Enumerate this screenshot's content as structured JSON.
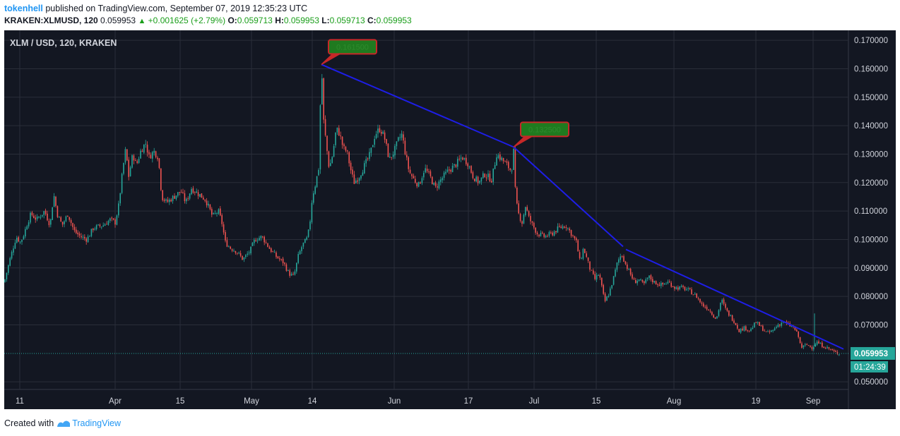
{
  "header": {
    "user": "tokenhell",
    "published_text": " published on TradingView.com, September 07, 2019 12:35:23 UTC",
    "symbol": "KRAKEN:XLMUSD, 120",
    "last": "0.059953",
    "change_arrow": "▲",
    "change": "+0.001625 (+2.79%)",
    "o_label": "O:",
    "o_value": "0.059713",
    "h_label": "H:",
    "h_value": "0.059953",
    "l_label": "L:",
    "l_value": "0.059713",
    "c_label": "C:",
    "c_value": "0.059953"
  },
  "footer": {
    "created_with": "Created with",
    "brand": "TradingView"
  },
  "colors": {
    "background": "#131722",
    "grid": "#2a2e39",
    "up": "#26a69a",
    "down": "#ef5350",
    "trendline": "#1e1ee6",
    "price_line": "#26a69a",
    "label_fill": "#1f7a1f",
    "label_border": "#c62828"
  },
  "chart_data": {
    "type": "candlestick",
    "title": "XLM / USD, 120, KRAKEN",
    "x_tick_labels": [
      "11",
      "Apr",
      "15",
      "May",
      "14",
      "Jun",
      "17",
      "Jul",
      "15",
      "Aug",
      "19",
      "Sep"
    ],
    "y_tick_labels": [
      "0.170000",
      "0.160000",
      "0.150000",
      "0.140000",
      "0.130000",
      "0.120000",
      "0.110000",
      "0.100000",
      "0.090000",
      "0.080000",
      "0.070000",
      "0.050000"
    ],
    "ylim": [
      0.0473,
      0.1735
    ],
    "grid": true,
    "last_price_label": "0.059953",
    "countdown_label": "01:24:39",
    "last_price": 0.059953,
    "price_path": [
      {
        "x": 0,
        "y": 0.085
      },
      {
        "x": 8,
        "y": 0.093
      },
      {
        "x": 17,
        "y": 0.101
      },
      {
        "x": 23,
        "y": 0.099
      },
      {
        "x": 28,
        "y": 0.102
      },
      {
        "x": 33,
        "y": 0.106
      },
      {
        "x": 38,
        "y": 0.109
      },
      {
        "x": 46,
        "y": 0.107
      },
      {
        "x": 57,
        "y": 0.11
      },
      {
        "x": 65,
        "y": 0.105
      },
      {
        "x": 70,
        "y": 0.116
      },
      {
        "x": 75,
        "y": 0.109
      },
      {
        "x": 82,
        "y": 0.105
      },
      {
        "x": 90,
        "y": 0.109
      },
      {
        "x": 99,
        "y": 0.103
      },
      {
        "x": 108,
        "y": 0.101
      },
      {
        "x": 117,
        "y": 0.1
      },
      {
        "x": 126,
        "y": 0.104
      },
      {
        "x": 140,
        "y": 0.105
      },
      {
        "x": 150,
        "y": 0.107
      },
      {
        "x": 157,
        "y": 0.106
      },
      {
        "x": 162,
        "y": 0.112
      },
      {
        "x": 168,
        "y": 0.125
      },
      {
        "x": 172,
        "y": 0.132
      },
      {
        "x": 176,
        "y": 0.122
      },
      {
        "x": 182,
        "y": 0.13
      },
      {
        "x": 187,
        "y": 0.126
      },
      {
        "x": 193,
        "y": 0.131
      },
      {
        "x": 200,
        "y": 0.134
      },
      {
        "x": 205,
        "y": 0.129
      },
      {
        "x": 212,
        "y": 0.131
      },
      {
        "x": 218,
        "y": 0.129
      },
      {
        "x": 223,
        "y": 0.115
      },
      {
        "x": 230,
        "y": 0.113
      },
      {
        "x": 240,
        "y": 0.115
      },
      {
        "x": 250,
        "y": 0.117
      },
      {
        "x": 257,
        "y": 0.113
      },
      {
        "x": 265,
        "y": 0.118
      },
      {
        "x": 275,
        "y": 0.116
      },
      {
        "x": 285,
        "y": 0.114
      },
      {
        "x": 295,
        "y": 0.108
      },
      {
        "x": 303,
        "y": 0.11
      },
      {
        "x": 308,
        "y": 0.106
      },
      {
        "x": 313,
        "y": 0.099
      },
      {
        "x": 320,
        "y": 0.097
      },
      {
        "x": 328,
        "y": 0.096
      },
      {
        "x": 338,
        "y": 0.093
      },
      {
        "x": 348,
        "y": 0.096
      },
      {
        "x": 355,
        "y": 0.1
      },
      {
        "x": 365,
        "y": 0.101
      },
      {
        "x": 375,
        "y": 0.097
      },
      {
        "x": 385,
        "y": 0.094
      },
      {
        "x": 395,
        "y": 0.092
      },
      {
        "x": 403,
        "y": 0.088
      },
      {
        "x": 410,
        "y": 0.087
      },
      {
        "x": 416,
        "y": 0.094
      },
      {
        "x": 422,
        "y": 0.098
      },
      {
        "x": 428,
        "y": 0.1
      },
      {
        "x": 432,
        "y": 0.104
      },
      {
        "x": 436,
        "y": 0.115
      },
      {
        "x": 441,
        "y": 0.12
      },
      {
        "x": 445,
        "y": 0.125
      },
      {
        "x": 449,
        "y": 0.162
      },
      {
        "x": 452,
        "y": 0.142
      },
      {
        "x": 456,
        "y": 0.133
      },
      {
        "x": 460,
        "y": 0.125
      },
      {
        "x": 465,
        "y": 0.13
      },
      {
        "x": 470,
        "y": 0.139
      },
      {
        "x": 475,
        "y": 0.137
      },
      {
        "x": 480,
        "y": 0.132
      },
      {
        "x": 485,
        "y": 0.131
      },
      {
        "x": 490,
        "y": 0.125
      },
      {
        "x": 495,
        "y": 0.12
      },
      {
        "x": 502,
        "y": 0.122
      },
      {
        "x": 510,
        "y": 0.126
      },
      {
        "x": 518,
        "y": 0.13
      },
      {
        "x": 525,
        "y": 0.137
      },
      {
        "x": 532,
        "y": 0.139
      },
      {
        "x": 538,
        "y": 0.136
      },
      {
        "x": 545,
        "y": 0.128
      },
      {
        "x": 552,
        "y": 0.131
      },
      {
        "x": 558,
        "y": 0.135
      },
      {
        "x": 563,
        "y": 0.137
      },
      {
        "x": 568,
        "y": 0.13
      },
      {
        "x": 573,
        "y": 0.124
      },
      {
        "x": 580,
        "y": 0.121
      },
      {
        "x": 587,
        "y": 0.119
      },
      {
        "x": 595,
        "y": 0.125
      },
      {
        "x": 603,
        "y": 0.122
      },
      {
        "x": 610,
        "y": 0.118
      },
      {
        "x": 618,
        "y": 0.121
      },
      {
        "x": 628,
        "y": 0.124
      },
      {
        "x": 638,
        "y": 0.126
      },
      {
        "x": 648,
        "y": 0.129
      },
      {
        "x": 656,
        "y": 0.127
      },
      {
        "x": 664,
        "y": 0.122
      },
      {
        "x": 672,
        "y": 0.12
      },
      {
        "x": 680,
        "y": 0.123
      },
      {
        "x": 690,
        "y": 0.121
      },
      {
        "x": 697,
        "y": 0.13
      },
      {
        "x": 705,
        "y": 0.128
      },
      {
        "x": 712,
        "y": 0.126
      },
      {
        "x": 718,
        "y": 0.124
      },
      {
        "x": 721,
        "y": 0.131
      },
      {
        "x": 724,
        "y": 0.114
      },
      {
        "x": 728,
        "y": 0.109
      },
      {
        "x": 733,
        "y": 0.106
      },
      {
        "x": 738,
        "y": 0.112
      },
      {
        "x": 742,
        "y": 0.108
      },
      {
        "x": 748,
        "y": 0.105
      },
      {
        "x": 755,
        "y": 0.102
      },
      {
        "x": 765,
        "y": 0.101
      },
      {
        "x": 775,
        "y": 0.102
      },
      {
        "x": 785,
        "y": 0.104
      },
      {
        "x": 795,
        "y": 0.105
      },
      {
        "x": 803,
        "y": 0.102
      },
      {
        "x": 810,
        "y": 0.099
      },
      {
        "x": 815,
        "y": 0.092
      },
      {
        "x": 820,
        "y": 0.097
      },
      {
        "x": 825,
        "y": 0.093
      },
      {
        "x": 830,
        "y": 0.089
      },
      {
        "x": 836,
        "y": 0.086
      },
      {
        "x": 842,
        "y": 0.088
      },
      {
        "x": 846,
        "y": 0.083
      },
      {
        "x": 850,
        "y": 0.078
      },
      {
        "x": 856,
        "y": 0.081
      },
      {
        "x": 862,
        "y": 0.086
      },
      {
        "x": 868,
        "y": 0.092
      },
      {
        "x": 874,
        "y": 0.095
      },
      {
        "x": 880,
        "y": 0.091
      },
      {
        "x": 886,
        "y": 0.088
      },
      {
        "x": 892,
        "y": 0.085
      },
      {
        "x": 898,
        "y": 0.086
      },
      {
        "x": 905,
        "y": 0.084
      },
      {
        "x": 912,
        "y": 0.087
      },
      {
        "x": 920,
        "y": 0.085
      },
      {
        "x": 930,
        "y": 0.084
      },
      {
        "x": 940,
        "y": 0.085
      },
      {
        "x": 950,
        "y": 0.083
      },
      {
        "x": 960,
        "y": 0.083
      },
      {
        "x": 970,
        "y": 0.082
      },
      {
        "x": 980,
        "y": 0.08
      },
      {
        "x": 988,
        "y": 0.077
      },
      {
        "x": 995,
        "y": 0.076
      },
      {
        "x": 1002,
        "y": 0.074
      },
      {
        "x": 1008,
        "y": 0.072
      },
      {
        "x": 1015,
        "y": 0.079
      },
      {
        "x": 1022,
        "y": 0.075
      },
      {
        "x": 1028,
        "y": 0.073
      },
      {
        "x": 1034,
        "y": 0.071
      },
      {
        "x": 1040,
        "y": 0.068
      },
      {
        "x": 1048,
        "y": 0.069
      },
      {
        "x": 1056,
        "y": 0.068
      },
      {
        "x": 1064,
        "y": 0.071
      },
      {
        "x": 1072,
        "y": 0.069
      },
      {
        "x": 1080,
        "y": 0.067
      },
      {
        "x": 1088,
        "y": 0.068
      },
      {
        "x": 1095,
        "y": 0.07
      },
      {
        "x": 1103,
        "y": 0.071
      },
      {
        "x": 1110,
        "y": 0.07
      },
      {
        "x": 1118,
        "y": 0.069
      },
      {
        "x": 1124,
        "y": 0.066
      },
      {
        "x": 1128,
        "y": 0.062
      },
      {
        "x": 1136,
        "y": 0.063
      },
      {
        "x": 1144,
        "y": 0.062
      },
      {
        "x": 1150,
        "y": 0.064
      },
      {
        "x": 1156,
        "y": 0.063
      },
      {
        "x": 1164,
        "y": 0.062
      },
      {
        "x": 1172,
        "y": 0.061
      },
      {
        "x": 1178,
        "y": 0.06
      },
      {
        "x": 1184,
        "y": 0.06
      }
    ],
    "trendlines": [
      {
        "x1": 449,
        "y1": 0.1615,
        "x2": 721,
        "y2": 0.1325
      },
      {
        "x1": 721,
        "y1": 0.1325,
        "x2": 876,
        "y2": 0.0975
      },
      {
        "x1": 880,
        "y1": 0.0965,
        "x2": 1188,
        "y2": 0.0615
      }
    ],
    "annotations": [
      {
        "text": "0.161500",
        "x": 449,
        "y": 0.1615
      },
      {
        "text": "0.132500",
        "x": 721,
        "y": 0.1325
      }
    ],
    "spikes": [
      {
        "x": 1147,
        "y_high": 0.074,
        "y_low": 0.0625
      }
    ]
  }
}
